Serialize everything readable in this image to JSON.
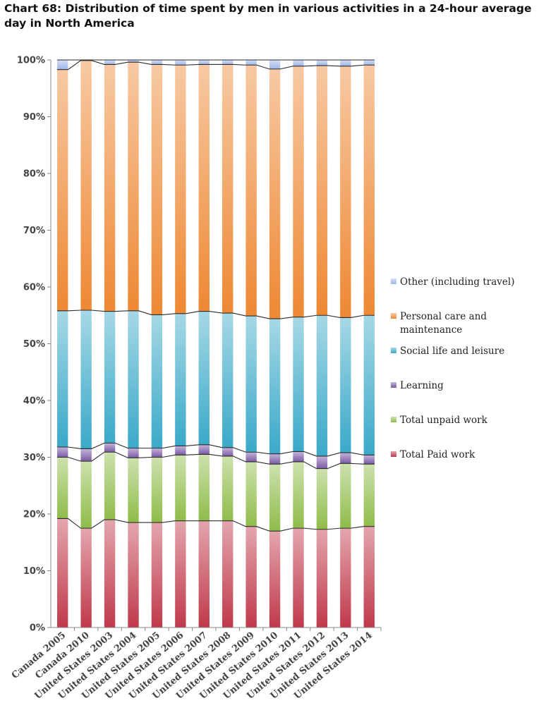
{
  "chart_data": {
    "type": "bar",
    "stacked": true,
    "normalized": true,
    "title": "Chart 68: Distribution of time spent by men in various activities in a 24-hour average day in North America",
    "categories": [
      "Canada 2005",
      "Canada 2010",
      "United States 2003",
      "United States 2004",
      "United States 2005",
      "United States 2006",
      "United States 2007",
      "United States 2008",
      "United States 2009",
      "United States 2010",
      "United States 2011",
      "United States 2012",
      "United States 2013",
      "United States 2014"
    ],
    "series": [
      {
        "name": "Total Paid work",
        "color": "#c0394a",
        "values": [
          19.2,
          17.5,
          19.0,
          18.5,
          18.5,
          18.8,
          18.8,
          18.8,
          17.8,
          17.0,
          17.5,
          17.3,
          17.5,
          17.8
        ]
      },
      {
        "name": "Total unpaid work",
        "color": "#8fbc4a",
        "values": [
          10.8,
          11.8,
          11.9,
          11.4,
          11.5,
          11.6,
          11.7,
          11.4,
          11.4,
          11.8,
          11.7,
          10.7,
          11.4,
          11.0
        ]
      },
      {
        "name": "Learning",
        "color": "#7b5aa6",
        "values": [
          1.8,
          2.2,
          1.6,
          1.7,
          1.6,
          1.6,
          1.7,
          1.5,
          1.7,
          1.8,
          1.8,
          2.2,
          1.9,
          1.6
        ]
      },
      {
        "name": "Social life and leisure",
        "color": "#3aa9c8",
        "values": [
          24.0,
          24.4,
          23.2,
          24.2,
          23.5,
          23.3,
          23.5,
          23.7,
          24.0,
          23.8,
          23.7,
          24.8,
          23.8,
          24.6
        ]
      },
      {
        "name": "Personal care and maintenance",
        "color": "#ee8833",
        "values": [
          42.5,
          44.0,
          43.5,
          43.8,
          44.1,
          43.8,
          43.5,
          43.8,
          44.2,
          44.0,
          44.2,
          44.0,
          44.3,
          44.1
        ]
      },
      {
        "name": "Other (including travel)",
        "color": "#9fb6e8",
        "values": [
          1.7,
          0.1,
          0.8,
          0.4,
          0.8,
          0.9,
          0.8,
          0.8,
          0.9,
          1.6,
          1.1,
          1.0,
          1.1,
          0.9
        ]
      }
    ],
    "ylim": [
      0,
      100
    ],
    "yticks": [
      "0%",
      "10%",
      "20%",
      "30%",
      "40%",
      "50%",
      "60%",
      "70%",
      "80%",
      "90%",
      "100%"
    ],
    "grid": false,
    "legend_position": "right"
  }
}
